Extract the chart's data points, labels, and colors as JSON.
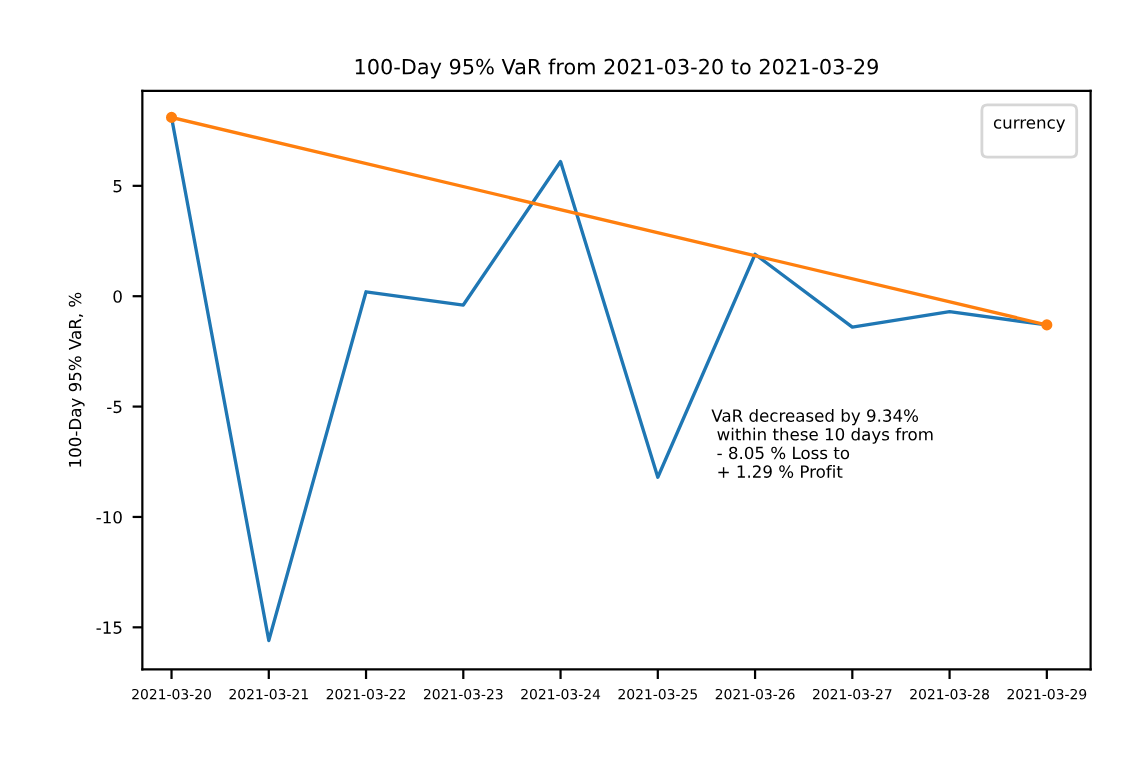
{
  "chart_data": {
    "type": "line",
    "title": "100-Day 95% VaR from 2021-03-20 to 2021-03-29",
    "ylabel": "100-Day 95% VaR, %",
    "legend_title": "currency",
    "categories": [
      "2021-03-20",
      "2021-03-21",
      "2021-03-22",
      "2021-03-23",
      "2021-03-24",
      "2021-03-25",
      "2021-03-26",
      "2021-03-27",
      "2021-03-28",
      "2021-03-29"
    ],
    "series": [
      {
        "color": "#1f77b4",
        "values": [
          8.1,
          -15.6,
          0.2,
          -0.4,
          6.1,
          -8.2,
          1.9,
          -1.4,
          -0.7,
          -1.3
        ],
        "marker": "none"
      },
      {
        "color": "#ff7f0e",
        "values": [
          8.1,
          null,
          null,
          null,
          null,
          null,
          null,
          null,
          null,
          -1.3
        ],
        "marker": "circle"
      }
    ],
    "ylim": [
      -16.9,
      9.3
    ],
    "yticks": [
      -15,
      -10,
      -5,
      0,
      5
    ],
    "grid": false,
    "line_style": "solid",
    "annotations": [
      "VaR decreased by 9.34%\n within these 10 days from\n - 8.05 % Loss to\n + 1.29 % Profit"
    ]
  }
}
